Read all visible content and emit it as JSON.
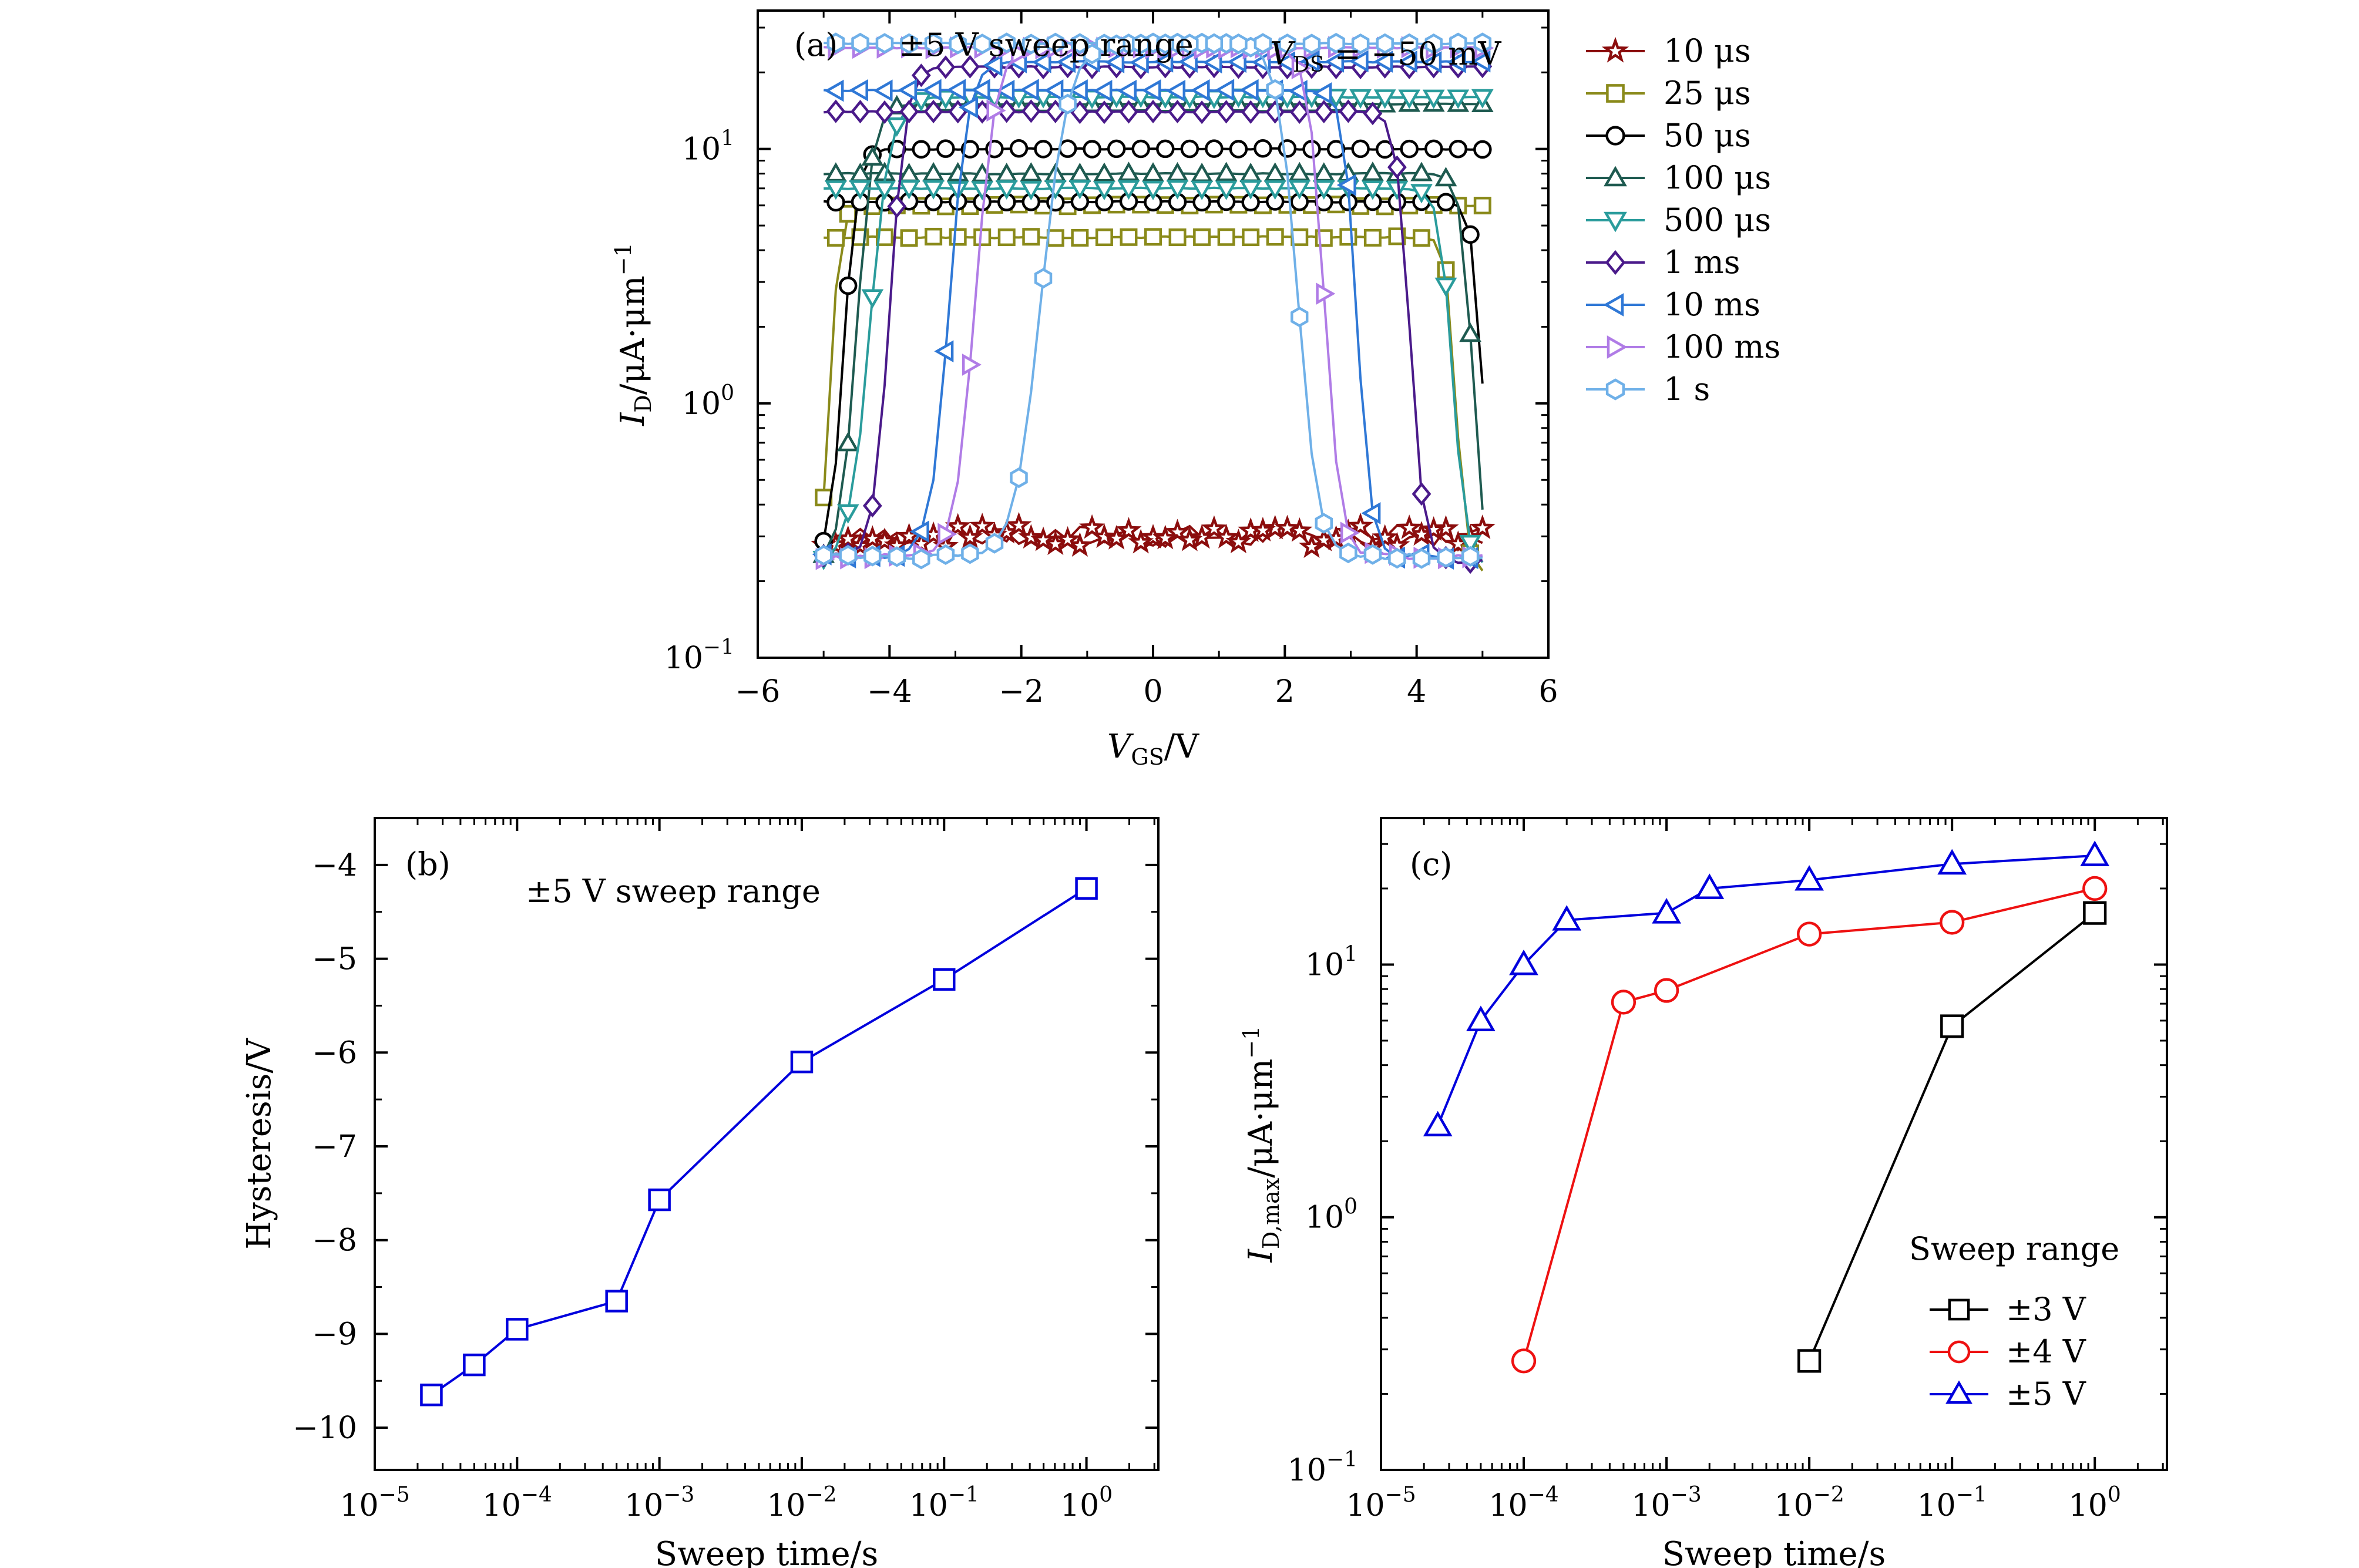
{
  "panel_a": {
    "label": "(a)",
    "annotation": "±5 V sweep range",
    "vds_prefix": "V",
    "vds_sub": "DS",
    "vds_rest": " = −50 mV",
    "xlabel_main": "V",
    "xlabel_sub": "GS",
    "xlabel_rest": "/V",
    "ylabel_main": "I",
    "ylabel_sub": "D",
    "ylabel_rest": "/μA·μm",
    "ylabel_sup": "−1",
    "xticks": [
      "−6",
      "−4",
      "−2",
      "0",
      "2",
      "4",
      "6"
    ],
    "yticks": [
      {
        "base": "10",
        "exp": "−1"
      },
      {
        "base": "10",
        "exp": "0"
      },
      {
        "base": "10",
        "exp": "1"
      }
    ],
    "legend": [
      "10 μs",
      "25 μs",
      "50 μs",
      "100 μs",
      "500 μs",
      "1 ms",
      "10 ms",
      "100 ms",
      "1 s"
    ]
  },
  "panel_b": {
    "label": "(b)",
    "annotation": "±5 V sweep range",
    "xlabel": "Sweep time/s",
    "ylabel": "Hysteresis/V",
    "xticks": [
      {
        "base": "10",
        "exp": "−5"
      },
      {
        "base": "10",
        "exp": "−4"
      },
      {
        "base": "10",
        "exp": "−3"
      },
      {
        "base": "10",
        "exp": "−2"
      },
      {
        "base": "10",
        "exp": "−1"
      },
      {
        "base": "10",
        "exp": "0"
      }
    ],
    "yticks": [
      "−10",
      "−9",
      "−8",
      "−7",
      "−6",
      "−5",
      "−4"
    ]
  },
  "panel_c": {
    "label": "(c)",
    "xlabel": "Sweep time/s",
    "ylabel_main": "I",
    "ylabel_sub": "D,max",
    "ylabel_rest": "/μA·μm",
    "ylabel_sup": "−1",
    "legend_title": "Sweep range",
    "legend": [
      "±3 V",
      "±4 V",
      "±5 V"
    ],
    "xticks": [
      {
        "base": "10",
        "exp": "−5"
      },
      {
        "base": "10",
        "exp": "−4"
      },
      {
        "base": "10",
        "exp": "−3"
      },
      {
        "base": "10",
        "exp": "−2"
      },
      {
        "base": "10",
        "exp": "−1"
      },
      {
        "base": "10",
        "exp": "0"
      }
    ],
    "yticks": [
      {
        "base": "10",
        "exp": "−1"
      },
      {
        "base": "10",
        "exp": "0"
      },
      {
        "base": "10",
        "exp": "1"
      }
    ]
  },
  "chart_data": [
    {
      "id": "a",
      "type": "line",
      "title": "",
      "xlabel": "VGS/V",
      "ylabel": "ID/μA·μm−1",
      "xlim": [
        -6,
        6
      ],
      "ylim": [
        0.1,
        35
      ],
      "yscale": "log",
      "legend_position": "outside-right",
      "series": [
        {
          "name": "10 μs",
          "color": "#8b0d0d",
          "marker": "star",
          "forward": {
            "vth": 5.0,
            "dlog": 0.2,
            "on": 0.3,
            "off": 0.25,
            "noise": 0.35,
            "forward_slope": 0.0
          },
          "backward": {
            "vth": -5.0,
            "dlog": 0.2,
            "on": 0.3,
            "off": 0.25,
            "noise": 0.35
          }
        },
        {
          "name": "25 μs",
          "color": "#8a8a1a",
          "marker": "square",
          "forward": {
            "vth": 4.6,
            "dlog": 0.07,
            "on": 4.5,
            "off": 0.22,
            "noise": 0.03,
            "forward_slope": 0.04
          },
          "backward": {
            "vth": -4.9,
            "dlog": 0.07,
            "on": 6.0,
            "off": 0.22,
            "noise": 0.03
          }
        },
        {
          "name": "50 μs",
          "color": "#000000",
          "marker": "circle",
          "forward": {
            "vth": 5.0,
            "dlog": 0.08,
            "on": 6.2,
            "off": 0.23,
            "noise": 0.02,
            "forward_slope": 0.04
          },
          "backward": {
            "vth": -4.7,
            "dlog": 0.1,
            "on": 10.0,
            "off": 0.24,
            "noise": 0.02
          }
        },
        {
          "name": "100 μs",
          "color": "#1e5a50",
          "marker": "triangle-up",
          "forward": {
            "vth": 4.85,
            "dlog": 0.09,
            "on": 8.0,
            "off": 0.22,
            "noise": 0.02,
            "forward_slope": 0.05
          },
          "backward": {
            "vth": -4.5,
            "dlog": 0.12,
            "on": 15.0,
            "off": 0.24,
            "noise": 0.02
          }
        },
        {
          "name": "500 μs",
          "color": "#2a9c9c",
          "marker": "triangle-down",
          "forward": {
            "vth": 4.55,
            "dlog": 0.1,
            "on": 7.0,
            "off": 0.23,
            "noise": 0.02,
            "forward_slope": 0.06
          },
          "backward": {
            "vth": -4.3,
            "dlog": 0.15,
            "on": 16.0,
            "off": 0.24,
            "noise": 0.02
          }
        },
        {
          "name": "1 ms",
          "color": "#4a1a8a",
          "marker": "diamond",
          "forward": {
            "vth": 3.9,
            "dlog": 0.1,
            "on": 14.0,
            "off": 0.24,
            "noise": 0.02,
            "forward_slope": 0.03
          },
          "backward": {
            "vth": -4.0,
            "dlog": 0.12,
            "on": 21.0,
            "off": 0.25,
            "noise": 0.02
          }
        },
        {
          "name": "10 ms",
          "color": "#2f78d6",
          "marker": "triangle-left",
          "forward": {
            "vth": 3.1,
            "dlog": 0.1,
            "on": 17.0,
            "off": 0.25,
            "noise": 0.02,
            "forward_slope": 0.03
          },
          "backward": {
            "vth": -3.1,
            "dlog": 0.14,
            "on": 22.0,
            "off": 0.25,
            "noise": 0.02
          }
        },
        {
          "name": "100 ms",
          "color": "#b07ce6",
          "marker": "triangle-right",
          "forward": {
            "vth": 2.6,
            "dlog": 0.12,
            "on": 25.0,
            "off": 0.25,
            "noise": 0.02,
            "forward_slope": 0.02
          },
          "backward": {
            "vth": -2.7,
            "dlog": 0.15,
            "on": 25.0,
            "off": 0.25,
            "noise": 0.02
          }
        },
        {
          "name": "1 s",
          "color": "#6fb0e8",
          "marker": "hexagon",
          "forward": {
            "vth": 2.2,
            "dlog": 0.15,
            "on": 26.0,
            "off": 0.25,
            "noise": 0.02,
            "forward_slope": 0.02
          },
          "backward": {
            "vth": -1.7,
            "dlog": 0.2,
            "on": 26.0,
            "off": 0.25,
            "noise": 0.02
          }
        }
      ]
    },
    {
      "id": "b",
      "type": "line",
      "title": "",
      "xlabel": "Sweep time/s",
      "ylabel": "Hysteresis/V",
      "xscale": "log",
      "xlim": [
        1e-05,
        3.2
      ],
      "ylim": [
        -10.45,
        -3.5
      ],
      "series": [
        {
          "color": "#0000dd",
          "marker": "square",
          "x": [
            2.5e-05,
            5e-05,
            0.0001,
            0.0005,
            0.001,
            0.01,
            0.1,
            1
          ],
          "y": [
            -9.65,
            -9.33,
            -8.95,
            -8.65,
            -7.57,
            -6.1,
            -5.22,
            -4.25
          ]
        }
      ]
    },
    {
      "id": "c",
      "type": "line",
      "title": "",
      "xlabel": "Sweep time/s",
      "ylabel": "ID,max/μA·μm−1",
      "xscale": "log",
      "yscale": "log",
      "xlim": [
        1e-05,
        3.2
      ],
      "ylim": [
        0.1,
        38
      ],
      "legend_position": "lower-right",
      "series": [
        {
          "name": "±3 V",
          "color": "#000000",
          "marker": "square",
          "x": [
            0.01,
            0.1,
            1
          ],
          "y": [
            0.27,
            5.7,
            16
          ]
        },
        {
          "name": "±4 V",
          "color": "#ee1111",
          "marker": "circle",
          "x": [
            0.0001,
            0.0005,
            0.001,
            0.01,
            0.1,
            1
          ],
          "y": [
            0.27,
            7.1,
            7.9,
            13.2,
            14.7,
            20
          ]
        },
        {
          "name": "±5 V",
          "color": "#0000dd",
          "marker": "triangle-up",
          "x": [
            2.5e-05,
            5e-05,
            0.0001,
            0.0002,
            0.001,
            0.002,
            0.01,
            0.1,
            1
          ],
          "y": [
            2.3,
            6.0,
            10.0,
            15.0,
            16.0,
            20.0,
            21.6,
            25.0,
            27.0
          ]
        }
      ]
    }
  ]
}
